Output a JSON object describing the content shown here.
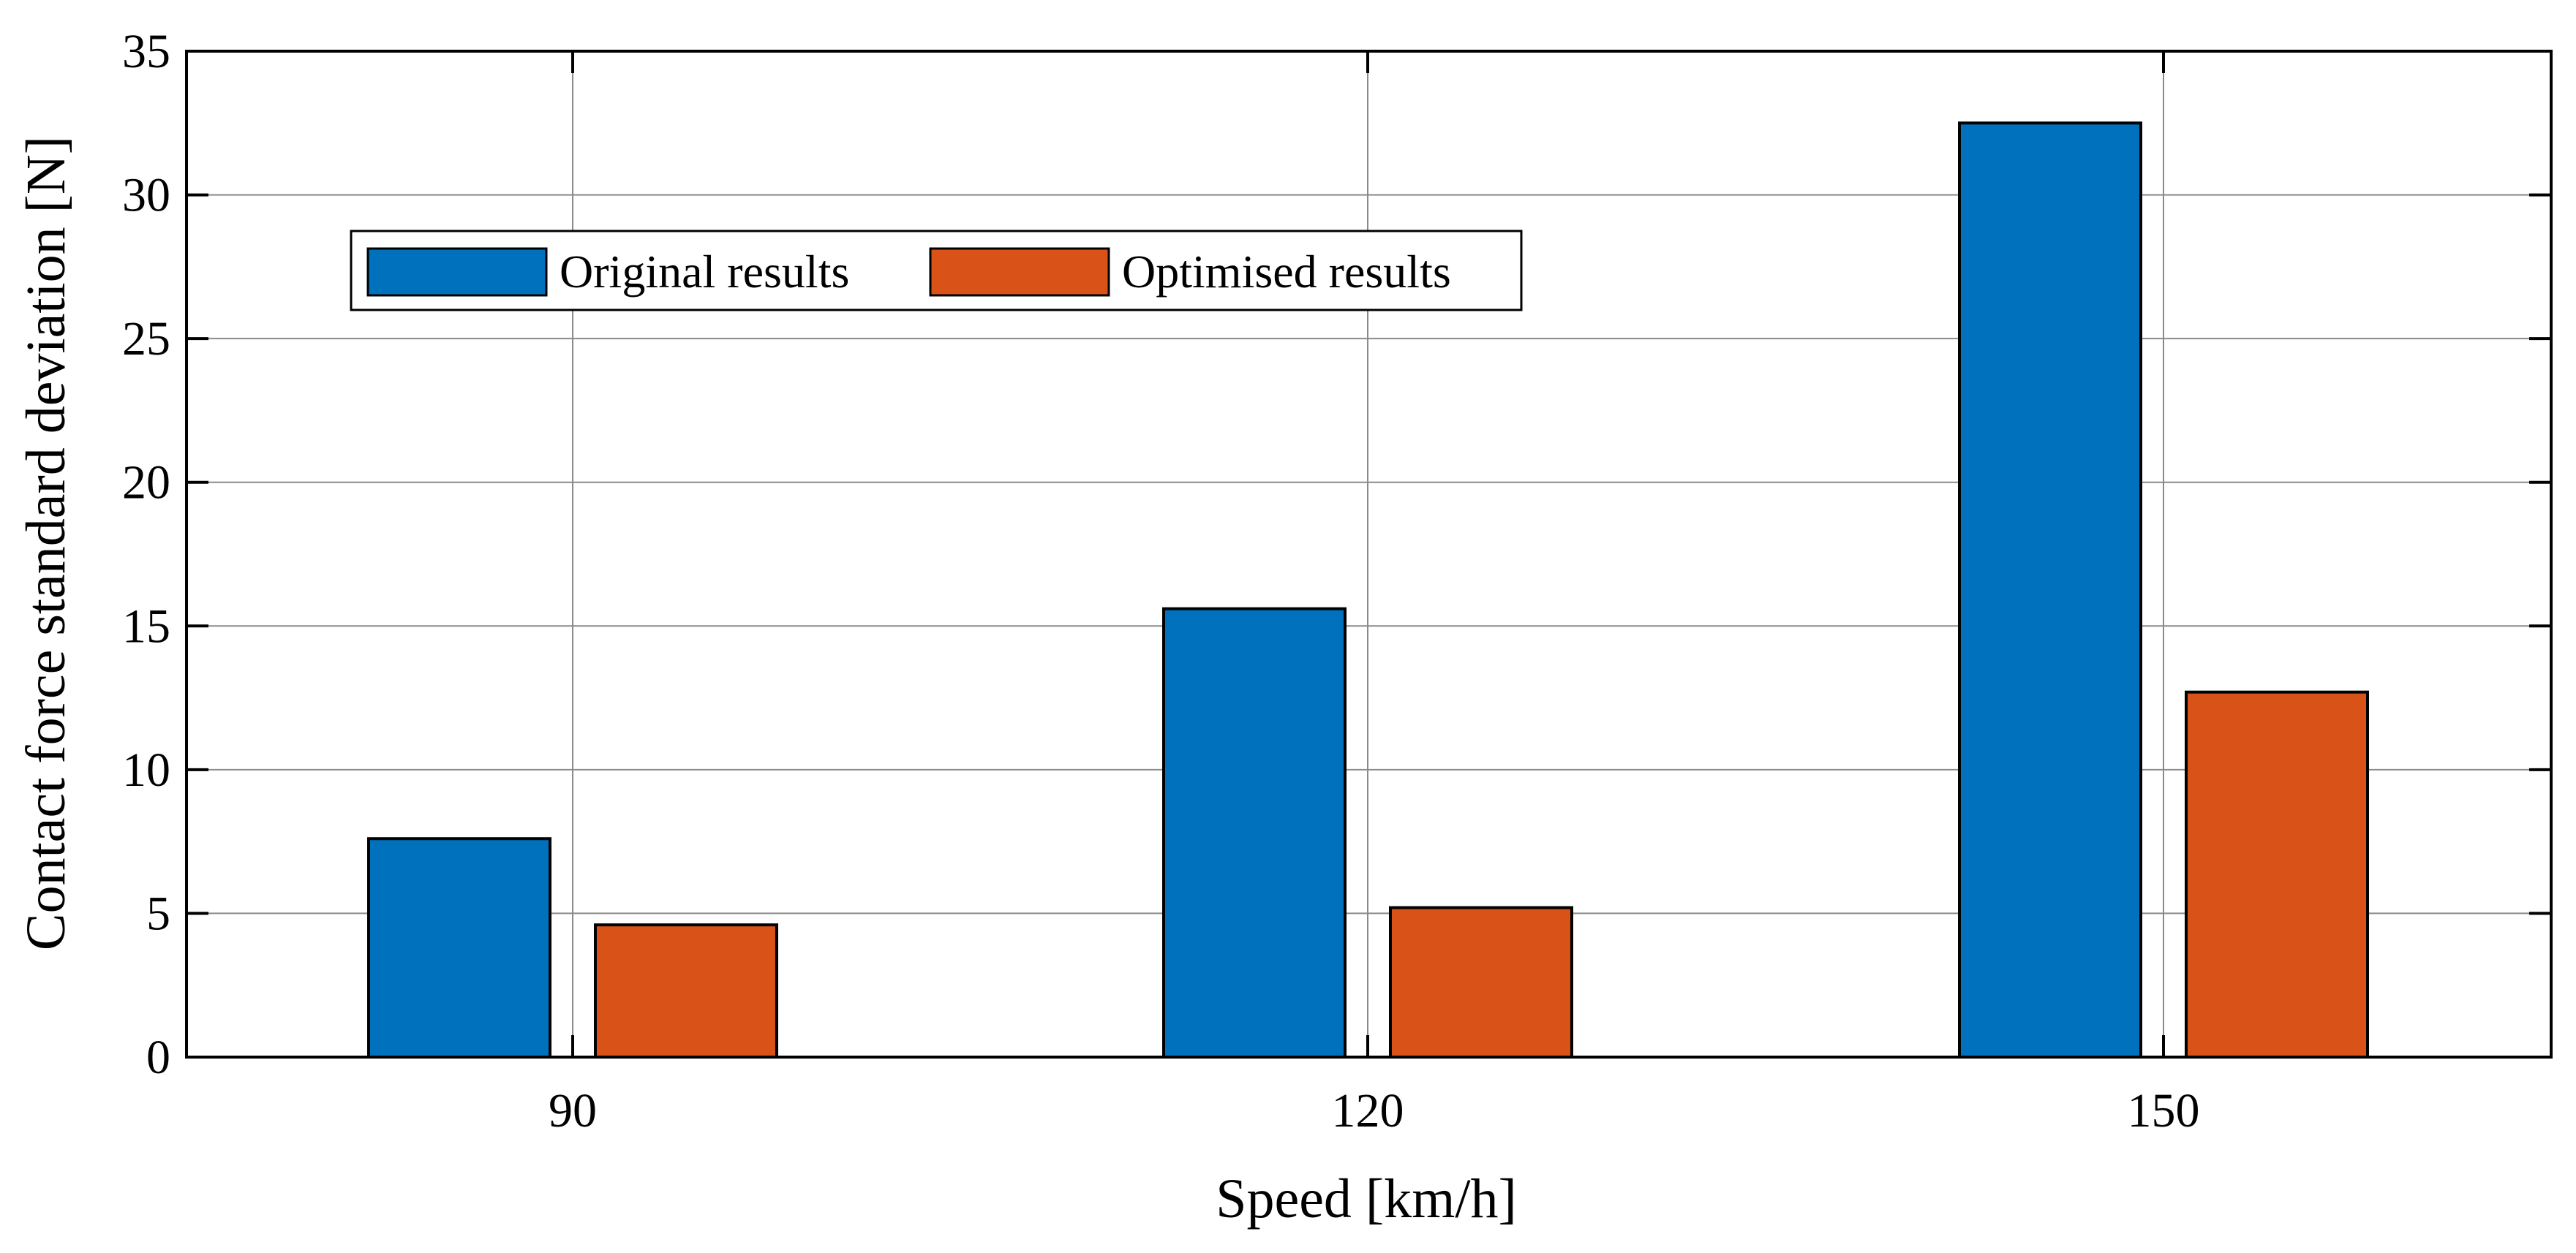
{
  "chart_data": {
    "type": "bar",
    "xlabel": "Speed [km/h]",
    "ylabel": "Contact force standard deviation [N]",
    "categories": [
      "90",
      "120",
      "150"
    ],
    "series": [
      {
        "name": "Original results",
        "color": "#0072BD",
        "values": [
          7.6,
          15.6,
          32.5
        ]
      },
      {
        "name": "Optimised results",
        "color": "#D95319",
        "values": [
          4.6,
          5.2,
          12.7
        ]
      }
    ],
    "ylim": [
      0,
      35
    ],
    "yticks": [
      0,
      5,
      10,
      15,
      20,
      25,
      30,
      35
    ],
    "grid": true,
    "legend_position": "top-left"
  }
}
